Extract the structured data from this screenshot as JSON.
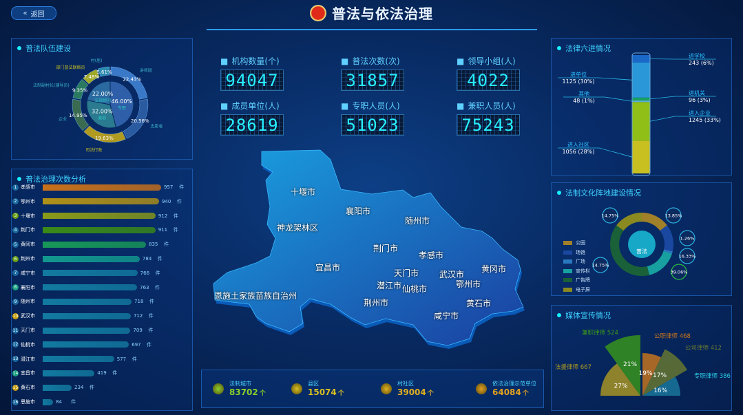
{
  "header": {
    "back_label": "返回",
    "title": "普法与依法治理"
  },
  "team": {
    "title": "普法队伍建设",
    "outer": [
      {
        "name": "讲师团",
        "pct": 22.43,
        "color": "#3a78c8"
      },
      {
        "name": "志愿者",
        "pct": 20.56,
        "color": "#2a5aa0"
      },
      {
        "name": "司法行政",
        "pct": 19.63,
        "color": "#b09a20"
      },
      {
        "name": "企业",
        "pct": 14.95,
        "color": "#3a6a50"
      },
      {
        "name": "法制副村长(辅导员)",
        "pct": 9.35,
        "color": "#2a7a60"
      },
      {
        "name": "部门普法联络员",
        "pct": 7.48,
        "color": "#a0a828"
      },
      {
        "name": "村(居)",
        "pct": 5.61,
        "color": "#2a8ab0"
      }
    ],
    "inner": [
      {
        "name": "专职",
        "pct": 46.0,
        "color": "#2f5fa8"
      },
      {
        "name": "兼职",
        "pct": 32.0,
        "color": "#2a7a90"
      },
      {
        "name": "法律顾问",
        "pct": 22.0,
        "color": "#2a6aa0"
      }
    ]
  },
  "bars": {
    "title": "普法治理次数分析",
    "unit": "件",
    "max": 957,
    "items": [
      {
        "rank": "1",
        "name": "孝感市",
        "value": 957,
        "color": "#c8701a"
      },
      {
        "rank": "2",
        "name": "鄂州市",
        "value": 940,
        "color": "#b09018"
      },
      {
        "rank": "3",
        "name": "十堰市",
        "value": 912,
        "color": "#8a9a18"
      },
      {
        "rank": "4",
        "name": "荆门市",
        "value": 911,
        "color": "#3a8a18"
      },
      {
        "rank": "5",
        "name": "黄冈市",
        "value": 835,
        "color": "#189858"
      },
      {
        "rank": "6",
        "name": "荆州市",
        "value": 784,
        "color": "#12988e"
      },
      {
        "rank": "7",
        "name": "咸宁市",
        "value": 766,
        "color": "#127aa0"
      },
      {
        "rank": "8",
        "name": "襄阳市",
        "value": 763,
        "color": "#127aa0"
      },
      {
        "rank": "9",
        "name": "随州市",
        "value": 718,
        "color": "#127aa0"
      },
      {
        "rank": "10",
        "name": "武汉市",
        "value": 712,
        "color": "#127aa0"
      },
      {
        "rank": "11",
        "name": "天门市",
        "value": 709,
        "color": "#127aa0"
      },
      {
        "rank": "12",
        "name": "仙桃市",
        "value": 697,
        "color": "#127aa0"
      },
      {
        "rank": "13",
        "name": "潜江市",
        "value": 577,
        "color": "#127aa0"
      },
      {
        "rank": "14",
        "name": "宜昌市",
        "value": 419,
        "color": "#127aa0"
      },
      {
        "rank": "15",
        "name": "黄石市",
        "value": 234,
        "color": "#127aa0"
      },
      {
        "rank": "16",
        "name": "恩施市",
        "value": 84,
        "color": "#127aa0"
      }
    ]
  },
  "stats": [
    {
      "icon": "bank-icon",
      "label": "机构数量(个)",
      "value": "94047"
    },
    {
      "icon": "book-icon",
      "label": "普法次数(次)",
      "value": "31857"
    },
    {
      "icon": "group-icon",
      "label": "领导小组(人)",
      "value": "4022"
    },
    {
      "icon": "home-icon",
      "label": "成员单位(人)",
      "value": "28619"
    },
    {
      "icon": "user-icon",
      "label": "专职人员(人)",
      "value": "51023"
    },
    {
      "icon": "person-icon",
      "label": "兼职人员(人)",
      "value": "75243"
    }
  ],
  "map": {
    "cities": [
      "十堰市",
      "襄阳市",
      "随州市",
      "神龙架林区",
      "荆门市",
      "孝感市",
      "宜昌市",
      "天门市",
      "武汉市",
      "黄冈市",
      "潜江市",
      "仙桃市",
      "鄂州市",
      "恩施土家族苗族自治州",
      "荆州市",
      "黄石市",
      "咸宁市"
    ]
  },
  "bottom": [
    {
      "label": "法制城市",
      "value": "83702",
      "unit": "个",
      "color": "#8ad12a"
    },
    {
      "label": "县区",
      "value": "15074",
      "unit": "个",
      "color": "#d8c020"
    },
    {
      "label": "村社区",
      "value": "39004",
      "unit": "个",
      "color": "#e0b020"
    },
    {
      "label": "依法治理示范单位",
      "value": "64084",
      "unit": "个",
      "color": "#e0a020"
    }
  ],
  "six": {
    "title": "法律六进情况",
    "items": [
      {
        "name": "进入社区",
        "value": 1056,
        "pct": "28%",
        "color": "#c8c020"
      },
      {
        "name": "进入企业",
        "value": 1245,
        "pct": "33%",
        "color": "#90c018"
      },
      {
        "name": "其他",
        "value": 48,
        "pct": "1%",
        "color": "#5ab0d8"
      },
      {
        "name": "进机关",
        "value": 96,
        "pct": "3%",
        "color": "#18a060"
      },
      {
        "name": "进单位",
        "value": 1125,
        "pct": "30%",
        "color": "#2a98d8"
      },
      {
        "name": "进学校",
        "value": 243,
        "pct": "6%",
        "color": "#1a68c8"
      }
    ]
  },
  "culture": {
    "title": "法制文化阵地建设情况",
    "center": "普法",
    "items": [
      {
        "name": "公园",
        "pct": 14.75,
        "color": "#a08028"
      },
      {
        "name": "场馆",
        "pct": 13.85,
        "color": "#1a48a0"
      },
      {
        "name": "广场",
        "pct": 1.26,
        "color": "#2a78c0"
      },
      {
        "name": "宣传栏",
        "pct": 16.33,
        "color": "#18a0a0"
      },
      {
        "name": "广告牌",
        "pct": 39.06,
        "color": "#1a6038"
      },
      {
        "name": "电子屏",
        "pct": 14.75,
        "color": "#8a8a20"
      }
    ]
  },
  "media": {
    "title": "媒体宣传情况",
    "items": [
      {
        "name": "法援律师",
        "value": 667,
        "pct": "27%",
        "color": "#b09a20"
      },
      {
        "name": "兼职律师",
        "value": 524,
        "pct": "21%",
        "color": "#3a9a18"
      },
      {
        "name": "公职律师",
        "value": 468,
        "pct": "19%",
        "color": "#d0781a"
      },
      {
        "name": "公司律师",
        "value": 412,
        "pct": "17%",
        "color": "#6a7a30"
      },
      {
        "name": "专职律师",
        "value": 386,
        "pct": "16%",
        "color": "#1a7aa0"
      }
    ]
  }
}
